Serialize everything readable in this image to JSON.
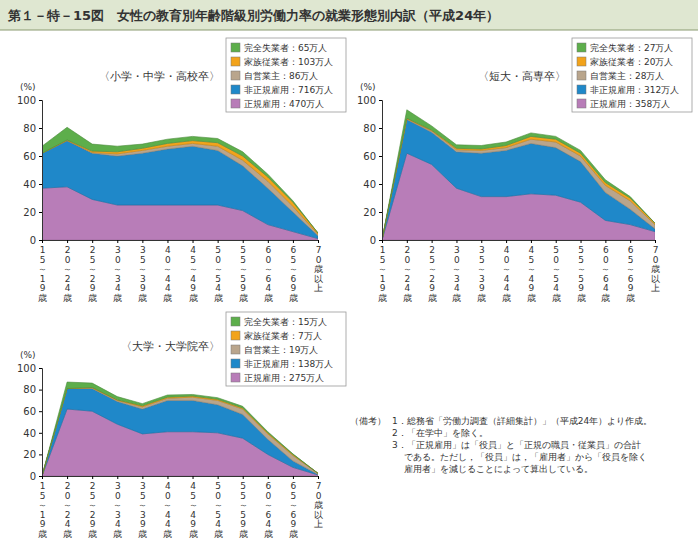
{
  "title": "第１－特－15図　女性の教育別年齢階級別労働力率の就業形態別内訳（平成24年）",
  "notes": {
    "label": "（備考）",
    "items": [
      [
        "1．総務省「労働力調査（詳細集計）」（平成24年）より作成。"
      ],
      [
        "2．「在学中」を除く。"
      ],
      [
        "3．「正規雇用」は「役員」と「正規の職員・従業員」の合計",
        "である。ただし，「役員」は，「雇用者」から「役員を除く",
        "雇用者」を減じることによって算出している。"
      ]
    ]
  },
  "chart_data": [
    {
      "type": "area",
      "title": "〈小学・中学・高校卒〉",
      "ylabel": "(%)",
      "stacked": true,
      "grid": false,
      "legend": "upper right",
      "categories": [
        "15～19歳",
        "20～24歳",
        "25～29歳",
        "30～34歳",
        "35～39歳",
        "40～44歳",
        "45～49歳",
        "50～54歳",
        "55～59歳",
        "60～64歳",
        "65～69歳",
        "70歳以上"
      ],
      "ylim": [
        0,
        100
      ],
      "yticks": [
        0,
        20,
        40,
        60,
        80,
        100
      ],
      "series": [
        {
          "name": "正規雇用：470万人",
          "color": "#b87db8",
          "values": [
            37,
            38,
            29,
            25,
            25,
            25,
            25,
            25,
            21,
            11,
            6,
            1
          ]
        },
        {
          "name": "非正規雇用：716万人",
          "color": "#1f88c9",
          "values": [
            25,
            33,
            33,
            35,
            37,
            40,
            42,
            39,
            32,
            26,
            14,
            2
          ]
        },
        {
          "name": "自営業主：86万人",
          "color": "#b9a58c",
          "values": [
            0,
            0,
            0.5,
            1.5,
            2,
            2,
            2,
            3,
            4,
            5,
            4,
            1
          ]
        },
        {
          "name": "家族従業者：103万人",
          "color": "#f2a31b",
          "values": [
            0,
            0.5,
            1,
            1.5,
            1.5,
            2,
            2,
            2.5,
            3,
            3,
            3,
            1
          ]
        },
        {
          "name": "完全失業者：65万人",
          "color": "#5dae4b",
          "values": [
            5,
            9,
            5,
            4,
            3,
            3,
            3,
            3,
            3,
            2,
            1,
            0
          ]
        }
      ]
    },
    {
      "type": "area",
      "title": "〈短大・高専卒〉",
      "ylabel": "(%)",
      "stacked": true,
      "grid": false,
      "legend": "upper right",
      "categories": [
        "15～19歳",
        "20～24歳",
        "25～29歳",
        "30～34歳",
        "35～39歳",
        "40～44歳",
        "45～49歳",
        "50～54歳",
        "55～59歳",
        "60～64歳",
        "65～69歳",
        "70歳以上"
      ],
      "ylim": [
        0,
        100
      ],
      "yticks": [
        0,
        20,
        40,
        60,
        80,
        100
      ],
      "series": [
        {
          "name": "正規雇用：358万人",
          "color": "#b87db8",
          "values": [
            0,
            62,
            54,
            37,
            31,
            31,
            33,
            32,
            27,
            14,
            11,
            6
          ]
        },
        {
          "name": "非正規雇用：312万人",
          "color": "#1f88c9",
          "values": [
            0,
            24,
            23,
            26,
            31,
            33,
            36,
            34,
            29,
            20,
            11,
            2
          ]
        },
        {
          "name": "自営業主：28万人",
          "color": "#b9a58c",
          "values": [
            0,
            0.5,
            1,
            1.5,
            2,
            2,
            3,
            4,
            4,
            5,
            6,
            3
          ]
        },
        {
          "name": "家族従業者：20万人",
          "color": "#f2a31b",
          "values": [
            0,
            0.5,
            0.5,
            1,
            1,
            1.5,
            2,
            2,
            2,
            2,
            2,
            1
          ]
        },
        {
          "name": "完全失業者：27万人",
          "color": "#5dae4b",
          "values": [
            0,
            6,
            3,
            2.5,
            2.5,
            2.5,
            2.5,
            2,
            2,
            2,
            1,
            0
          ]
        }
      ]
    },
    {
      "type": "area",
      "title": "〈大学・大学院卒〉",
      "ylabel": "(%)",
      "stacked": true,
      "grid": false,
      "legend": "upper right",
      "categories": [
        "15～19歳",
        "20～24歳",
        "25～29歳",
        "30～34歳",
        "35～39歳",
        "40～44歳",
        "45～49歳",
        "50～54歳",
        "55～59歳",
        "60～64歳",
        "65～69歳",
        "70歳以上"
      ],
      "ylim": [
        0,
        100
      ],
      "yticks": [
        0,
        20,
        40,
        60,
        80,
        100
      ],
      "series": [
        {
          "name": "正規雇用：275万人",
          "color": "#b87db8",
          "values": [
            0,
            62,
            60,
            48,
            39,
            41,
            41,
            40,
            35,
            20,
            8,
            1
          ]
        },
        {
          "name": "非正規雇用：138万人",
          "color": "#1f88c9",
          "values": [
            0,
            19,
            21,
            21,
            23,
            29,
            29,
            26,
            22,
            14,
            6,
            0.5
          ]
        },
        {
          "name": "自営業主：19万人",
          "color": "#b9a58c",
          "values": [
            0,
            0,
            0.5,
            1,
            2,
            2,
            3,
            4,
            5,
            5,
            5,
            1
          ]
        },
        {
          "name": "家族従業者：7万人",
          "color": "#f2a31b",
          "values": [
            0,
            0,
            0.5,
            0.5,
            1,
            1,
            1,
            1,
            1,
            1,
            1,
            0
          ]
        },
        {
          "name": "完全失業者：15万人",
          "color": "#5dae4b",
          "values": [
            0,
            6,
            4,
            3,
            2,
            2,
            1.5,
            1.5,
            1.5,
            1,
            0.5,
            0
          ]
        }
      ]
    }
  ]
}
